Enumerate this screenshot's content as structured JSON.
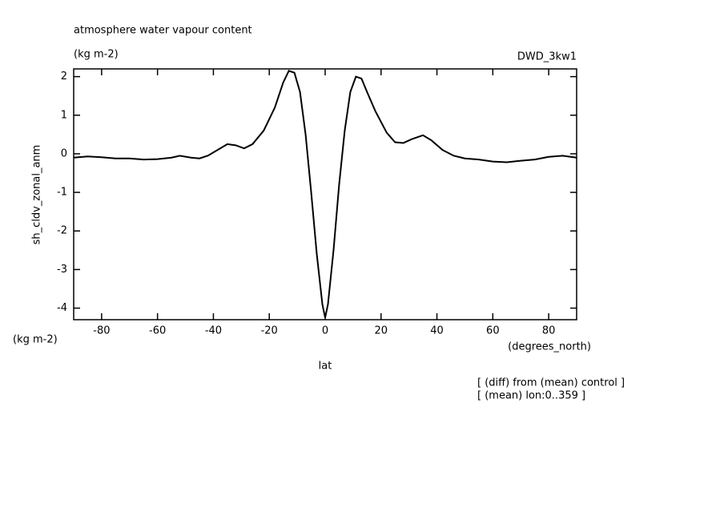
{
  "chart_data": {
    "type": "line",
    "title": "atmosphere water vapour content",
    "subtitle": "(kg m-2)",
    "source": "DWD_3kw1",
    "y_label": "sh_cldv_zonal_anm",
    "y_unit": "(kg m-2)",
    "x_label": "lat",
    "x_unit": "(degrees_north)",
    "notes": [
      "[ (diff) from (mean) control ]",
      "[ (mean) lon:0..359 ]"
    ],
    "xlim": [
      -90,
      90
    ],
    "ylim": [
      -4.3,
      2.2
    ],
    "xticks": [
      -80,
      -60,
      -40,
      -20,
      0,
      20,
      40,
      60,
      80
    ],
    "yticks": [
      -4,
      -3,
      -2,
      -1,
      0,
      1,
      2
    ],
    "x": [
      -90,
      -85,
      -80,
      -75,
      -70,
      -65,
      -60,
      -55,
      -52,
      -48,
      -45,
      -42,
      -38,
      -35,
      -32,
      -29,
      -26,
      -22,
      -18,
      -15,
      -13,
      -11,
      -9,
      -7,
      -5,
      -3,
      -1,
      0,
      1,
      3,
      5,
      7,
      9,
      11,
      13,
      15,
      18,
      22,
      25,
      28,
      31,
      35,
      38,
      42,
      46,
      50,
      55,
      60,
      65,
      70,
      75,
      80,
      85,
      90
    ],
    "series": [
      {
        "name": "sh_cldv_zonal_anm",
        "color": "#000000",
        "values": [
          -0.1,
          -0.07,
          -0.09,
          -0.12,
          -0.12,
          -0.15,
          -0.14,
          -0.1,
          -0.05,
          -0.1,
          -0.12,
          -0.05,
          0.12,
          0.25,
          0.22,
          0.14,
          0.25,
          0.6,
          1.2,
          1.85,
          2.15,
          2.1,
          1.6,
          0.5,
          -1.0,
          -2.6,
          -3.9,
          -4.25,
          -3.9,
          -2.5,
          -0.8,
          0.6,
          1.6,
          2.0,
          1.95,
          1.6,
          1.1,
          0.55,
          0.3,
          0.28,
          0.38,
          0.48,
          0.35,
          0.1,
          -0.05,
          -0.12,
          -0.15,
          -0.2,
          -0.22,
          -0.18,
          -0.15,
          -0.08,
          -0.05,
          -0.1
        ]
      }
    ]
  }
}
